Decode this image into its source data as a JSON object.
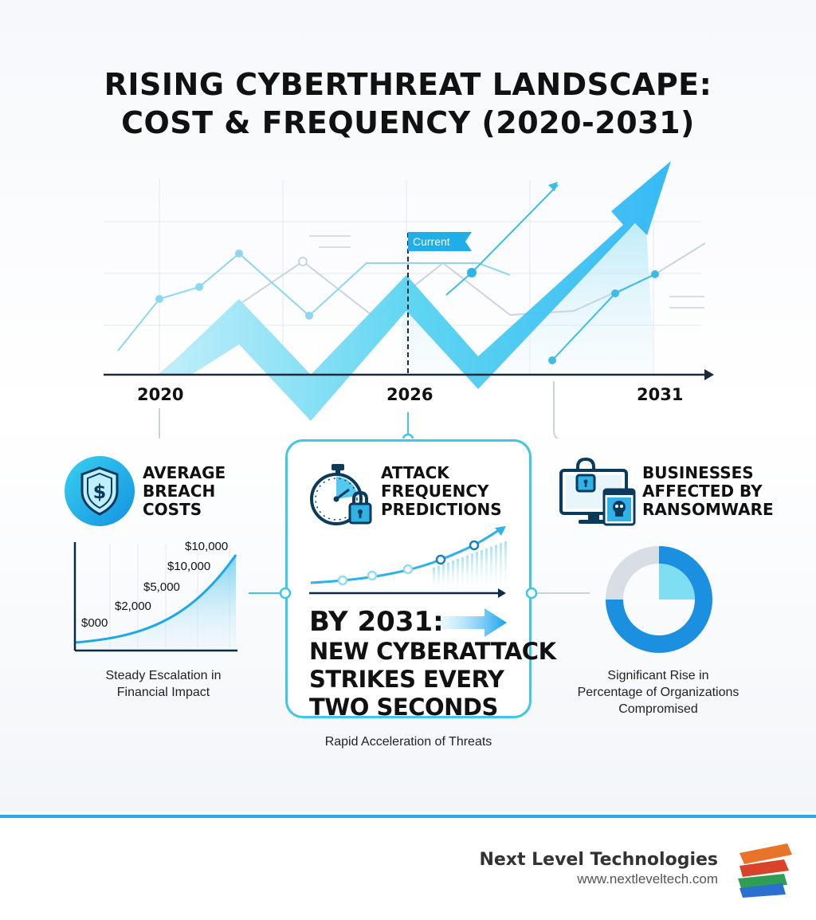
{
  "title": {
    "line1": "RISING CYBERTHREAT LANDSCAPE:",
    "line2": "COST & FREQUENCY (2020-2031)"
  },
  "hero": {
    "marker_label": "Current",
    "years": [
      "2020",
      "2026",
      "2031"
    ]
  },
  "panels": {
    "breach": {
      "title_lines": [
        "AVERAGE",
        "BREACH",
        "COSTS"
      ],
      "icon": "shield-dollar-icon",
      "caption_lines": [
        "Steady Escalation in",
        "Financial Impact"
      ]
    },
    "frequency": {
      "title_lines": [
        "ATTACK",
        "FREQUENCY",
        "PREDICTIONS"
      ],
      "icon": "stopwatch-lock-icon",
      "headline_line1": "BY 2031:",
      "headline_lines": [
        "NEW CYBERATTACK",
        "STRIKES EVERY",
        "TWO SECONDS"
      ],
      "caption": "Rapid Acceleration of Threats"
    },
    "ransomware": {
      "title_lines": [
        "BUSINESSES",
        "AFFECTED BY",
        "RANSOMWARE"
      ],
      "icon": "computer-lock-skull-icon",
      "caption_lines": [
        "Significant Rise in",
        "Percentage of Organizations",
        "Compromised"
      ]
    }
  },
  "chart_data": [
    {
      "type": "area",
      "title": "Average Breach Costs",
      "labels": [
        "$000",
        "$2,000",
        "$5,000",
        "$10,000",
        "$10,000"
      ],
      "values": [
        0,
        2000,
        5000,
        10000,
        10000
      ],
      "grid": true
    },
    {
      "type": "line",
      "title": "Attack Frequency Predictions",
      "values": [
        1,
        2,
        3,
        4.5,
        6.5
      ],
      "grid": false
    },
    {
      "type": "pie",
      "title": "Businesses Affected by Ransomware",
      "values": [
        0.75
      ],
      "colors": [
        "#1b8fe0",
        "#d9dee5",
        "#7fdff2"
      ]
    }
  ],
  "brand": {
    "name": "Next Level Technologies",
    "url": "www.nextleveltech.com"
  },
  "colors": {
    "accent": "#2aa7e8",
    "cyan": "#3cc8e6",
    "dark": "#111111"
  }
}
